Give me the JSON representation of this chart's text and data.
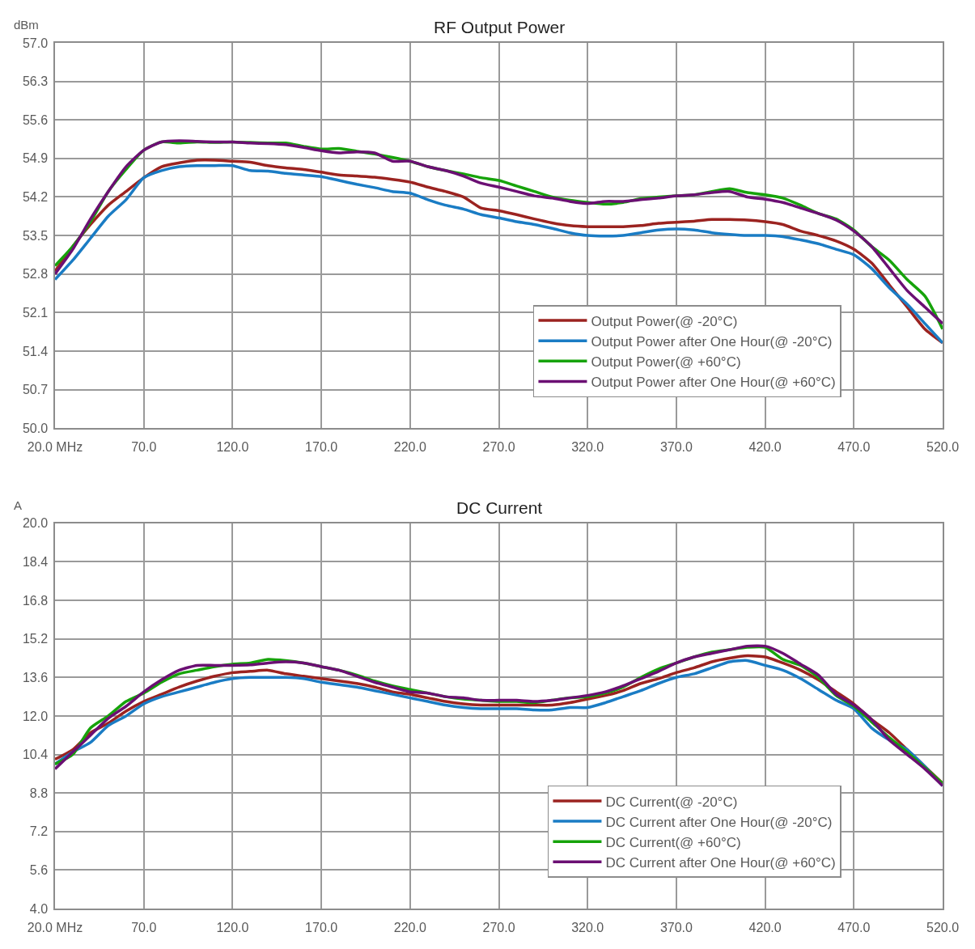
{
  "chart_data": [
    {
      "type": "line",
      "title": "RF Output Power",
      "ylabel": "dBm",
      "x": [
        20,
        30,
        40,
        50,
        60,
        70,
        80,
        90,
        100,
        110,
        120,
        130,
        140,
        150,
        160,
        170,
        180,
        190,
        200,
        210,
        220,
        230,
        240,
        250,
        260,
        270,
        280,
        290,
        300,
        310,
        320,
        330,
        340,
        350,
        360,
        370,
        380,
        390,
        400,
        410,
        420,
        430,
        440,
        450,
        460,
        470,
        480,
        490,
        500,
        510,
        520
      ],
      "xlim": [
        20,
        520
      ],
      "xticks": [
        {
          "value": 20,
          "label": "20.0 MHz"
        },
        {
          "value": 70,
          "label": "70.0"
        },
        {
          "value": 120,
          "label": "120.0"
        },
        {
          "value": 170,
          "label": "170.0"
        },
        {
          "value": 220,
          "label": "220.0"
        },
        {
          "value": 270,
          "label": "270.0"
        },
        {
          "value": 320,
          "label": "320.0"
        },
        {
          "value": 370,
          "label": "370.0"
        },
        {
          "value": 420,
          "label": "420.0"
        },
        {
          "value": 470,
          "label": "470.0"
        },
        {
          "value": 520,
          "label": "520.0"
        }
      ],
      "ylim": [
        50,
        57
      ],
      "yticks": [
        {
          "value": 50,
          "label": "50.0"
        },
        {
          "value": 50.7,
          "label": "50.7"
        },
        {
          "value": 51.4,
          "label": "51.4"
        },
        {
          "value": 52.1,
          "label": "52.1"
        },
        {
          "value": 52.8,
          "label": "52.8"
        },
        {
          "value": 53.5,
          "label": "53.5"
        },
        {
          "value": 54.2,
          "label": "54.2"
        },
        {
          "value": 54.9,
          "label": "54.9"
        },
        {
          "value": 55.6,
          "label": "55.6"
        },
        {
          "value": 56.3,
          "label": "56.3"
        },
        {
          "value": 57,
          "label": "57.0"
        }
      ],
      "grid": true,
      "legend": "bottom right",
      "marker": "none",
      "line_style": "solid",
      "series": [
        {
          "name": "Output Power(@ -20°C)",
          "color": "#9b2320",
          "values": [
            52.85,
            53.3,
            53.7,
            54.05,
            54.3,
            54.55,
            54.75,
            54.82,
            54.87,
            54.87,
            54.85,
            54.83,
            54.77,
            54.73,
            54.7,
            54.65,
            54.6,
            54.58,
            54.56,
            54.52,
            54.47,
            54.38,
            54.3,
            54.2,
            54.0,
            53.95,
            53.88,
            53.8,
            53.73,
            53.68,
            53.66,
            53.66,
            53.66,
            53.68,
            53.72,
            53.74,
            53.76,
            53.79,
            53.79,
            53.78,
            53.75,
            53.7,
            53.58,
            53.5,
            53.4,
            53.25,
            53.0,
            52.6,
            52.2,
            51.8,
            51.55
          ]
        },
        {
          "name": "Output Power after One Hour(@ -20°C)",
          "color": "#1a7cc4",
          "values": [
            52.7,
            53.05,
            53.45,
            53.85,
            54.15,
            54.55,
            54.68,
            54.75,
            54.77,
            54.77,
            54.77,
            54.68,
            54.67,
            54.63,
            54.6,
            54.57,
            54.5,
            54.43,
            54.37,
            54.3,
            54.27,
            54.15,
            54.05,
            53.98,
            53.88,
            53.82,
            53.75,
            53.7,
            53.63,
            53.55,
            53.5,
            53.49,
            53.5,
            53.55,
            53.6,
            53.62,
            53.6,
            53.55,
            53.52,
            53.5,
            53.5,
            53.48,
            53.42,
            53.35,
            53.25,
            53.15,
            52.9,
            52.55,
            52.25,
            51.9,
            51.55
          ]
        },
        {
          "name": "Output Power(@ +60°C)",
          "color": "#16a30a",
          "values": [
            52.95,
            53.3,
            53.75,
            54.3,
            54.7,
            55.05,
            55.2,
            55.18,
            55.2,
            55.19,
            55.2,
            55.19,
            55.18,
            55.18,
            55.12,
            55.07,
            55.08,
            55.03,
            54.98,
            54.92,
            54.85,
            54.75,
            54.68,
            54.62,
            54.55,
            54.5,
            54.4,
            54.3,
            54.2,
            54.14,
            54.1,
            54.07,
            54.1,
            54.17,
            54.2,
            54.22,
            54.24,
            54.3,
            54.35,
            54.28,
            54.24,
            54.18,
            54.05,
            53.9,
            53.8,
            53.6,
            53.3,
            53.05,
            52.7,
            52.4,
            51.8
          ]
        },
        {
          "name": "Output Power after One Hour(@ +60°C)",
          "color": "#6b0f73",
          "values": [
            52.8,
            53.25,
            53.8,
            54.3,
            54.75,
            55.05,
            55.2,
            55.22,
            55.21,
            55.2,
            55.2,
            55.18,
            55.17,
            55.15,
            55.1,
            55.04,
            55.0,
            55.02,
            55.0,
            54.85,
            54.85,
            54.75,
            54.68,
            54.58,
            54.45,
            54.38,
            54.3,
            54.22,
            54.18,
            54.12,
            54.08,
            54.12,
            54.12,
            54.15,
            54.18,
            54.22,
            54.24,
            54.28,
            54.3,
            54.2,
            54.16,
            54.1,
            54.0,
            53.9,
            53.78,
            53.58,
            53.3,
            52.9,
            52.5,
            52.2,
            51.9
          ]
        }
      ]
    },
    {
      "type": "line",
      "title": "DC Current",
      "ylabel": "A",
      "x": [
        20,
        30,
        40,
        50,
        60,
        70,
        80,
        90,
        100,
        110,
        120,
        130,
        140,
        150,
        160,
        170,
        180,
        190,
        200,
        210,
        220,
        230,
        240,
        250,
        260,
        270,
        280,
        290,
        300,
        310,
        320,
        330,
        340,
        350,
        360,
        370,
        380,
        390,
        400,
        410,
        420,
        430,
        440,
        450,
        460,
        470,
        480,
        490,
        500,
        510,
        520
      ],
      "xlim": [
        20,
        520
      ],
      "xticks": [
        {
          "value": 20,
          "label": "20.0 MHz"
        },
        {
          "value": 70,
          "label": "70.0"
        },
        {
          "value": 120,
          "label": "120.0"
        },
        {
          "value": 170,
          "label": "170.0"
        },
        {
          "value": 220,
          "label": "220.0"
        },
        {
          "value": 270,
          "label": "270.0"
        },
        {
          "value": 320,
          "label": "320.0"
        },
        {
          "value": 370,
          "label": "370.0"
        },
        {
          "value": 420,
          "label": "420.0"
        },
        {
          "value": 470,
          "label": "470.0"
        },
        {
          "value": 520,
          "label": "520.0"
        }
      ],
      "ylim": [
        4,
        20
      ],
      "yticks": [
        {
          "value": 4,
          "label": "4.0"
        },
        {
          "value": 5.6,
          "label": "5.6"
        },
        {
          "value": 7.2,
          "label": "7.2"
        },
        {
          "value": 8.8,
          "label": "8.8"
        },
        {
          "value": 10.4,
          "label": "10.4"
        },
        {
          "value": 12,
          "label": "12.0"
        },
        {
          "value": 13.6,
          "label": "13.6"
        },
        {
          "value": 15.2,
          "label": "15.2"
        },
        {
          "value": 16.8,
          "label": "16.8"
        },
        {
          "value": 18.4,
          "label": "18.4"
        },
        {
          "value": 20,
          "label": "20.0"
        }
      ],
      "grid": true,
      "legend": "bottom right",
      "marker": "none",
      "line_style": "solid",
      "series": [
        {
          "name": "DC Current(@ -20°C)",
          "color": "#9b2320",
          "values": [
            10.2,
            10.6,
            11.3,
            11.7,
            12.2,
            12.6,
            12.9,
            13.2,
            13.45,
            13.65,
            13.8,
            13.85,
            13.9,
            13.75,
            13.65,
            13.55,
            13.45,
            13.35,
            13.2,
            13.0,
            12.9,
            12.75,
            12.6,
            12.5,
            12.45,
            12.45,
            12.45,
            12.45,
            12.45,
            12.55,
            12.7,
            12.85,
            13.05,
            13.35,
            13.55,
            13.8,
            14.0,
            14.25,
            14.4,
            14.5,
            14.45,
            14.2,
            13.9,
            13.5,
            13.0,
            12.5,
            11.85,
            11.3,
            10.6,
            9.9,
            9.2
          ]
        },
        {
          "name": "DC Current after One Hour(@ -20°C)",
          "color": "#1a7cc4",
          "values": [
            10.0,
            10.5,
            10.9,
            11.6,
            12.0,
            12.5,
            12.8,
            13.0,
            13.2,
            13.4,
            13.55,
            13.6,
            13.6,
            13.6,
            13.55,
            13.4,
            13.3,
            13.2,
            13.05,
            12.9,
            12.75,
            12.6,
            12.45,
            12.35,
            12.3,
            12.3,
            12.3,
            12.25,
            12.25,
            12.35,
            12.35,
            12.55,
            12.8,
            13.05,
            13.35,
            13.6,
            13.75,
            14.0,
            14.25,
            14.3,
            14.1,
            13.9,
            13.55,
            13.1,
            12.65,
            12.3,
            11.5,
            11.0,
            10.6,
            9.9,
            9.1
          ]
        },
        {
          "name": "DC Current(@ +60°C)",
          "color": "#16a30a",
          "values": [
            10.0,
            10.4,
            11.5,
            12.0,
            12.6,
            12.95,
            13.4,
            13.75,
            13.9,
            14.05,
            14.15,
            14.2,
            14.35,
            14.3,
            14.2,
            14.05,
            13.9,
            13.7,
            13.45,
            13.25,
            13.1,
            12.95,
            12.8,
            12.7,
            12.65,
            12.6,
            12.6,
            12.55,
            12.65,
            12.75,
            12.8,
            12.95,
            13.2,
            13.6,
            13.95,
            14.2,
            14.45,
            14.65,
            14.75,
            14.85,
            14.85,
            14.35,
            14.1,
            13.6,
            12.85,
            12.4,
            11.75,
            11.1,
            10.5,
            9.85,
            9.2
          ]
        },
        {
          "name": "DC Current after One Hour(@ +60°C)",
          "color": "#6b0f73",
          "values": [
            9.8,
            10.5,
            11.2,
            11.9,
            12.4,
            13.0,
            13.5,
            13.9,
            14.1,
            14.1,
            14.1,
            14.12,
            14.2,
            14.25,
            14.2,
            14.05,
            13.9,
            13.65,
            13.4,
            13.2,
            13.0,
            12.95,
            12.8,
            12.75,
            12.65,
            12.65,
            12.65,
            12.6,
            12.65,
            12.75,
            12.85,
            13.0,
            13.25,
            13.55,
            13.85,
            14.2,
            14.45,
            14.6,
            14.75,
            14.9,
            14.9,
            14.6,
            14.15,
            13.7,
            12.9,
            12.45,
            11.85,
            11.0,
            10.4,
            9.8,
            9.1
          ]
        }
      ]
    }
  ]
}
